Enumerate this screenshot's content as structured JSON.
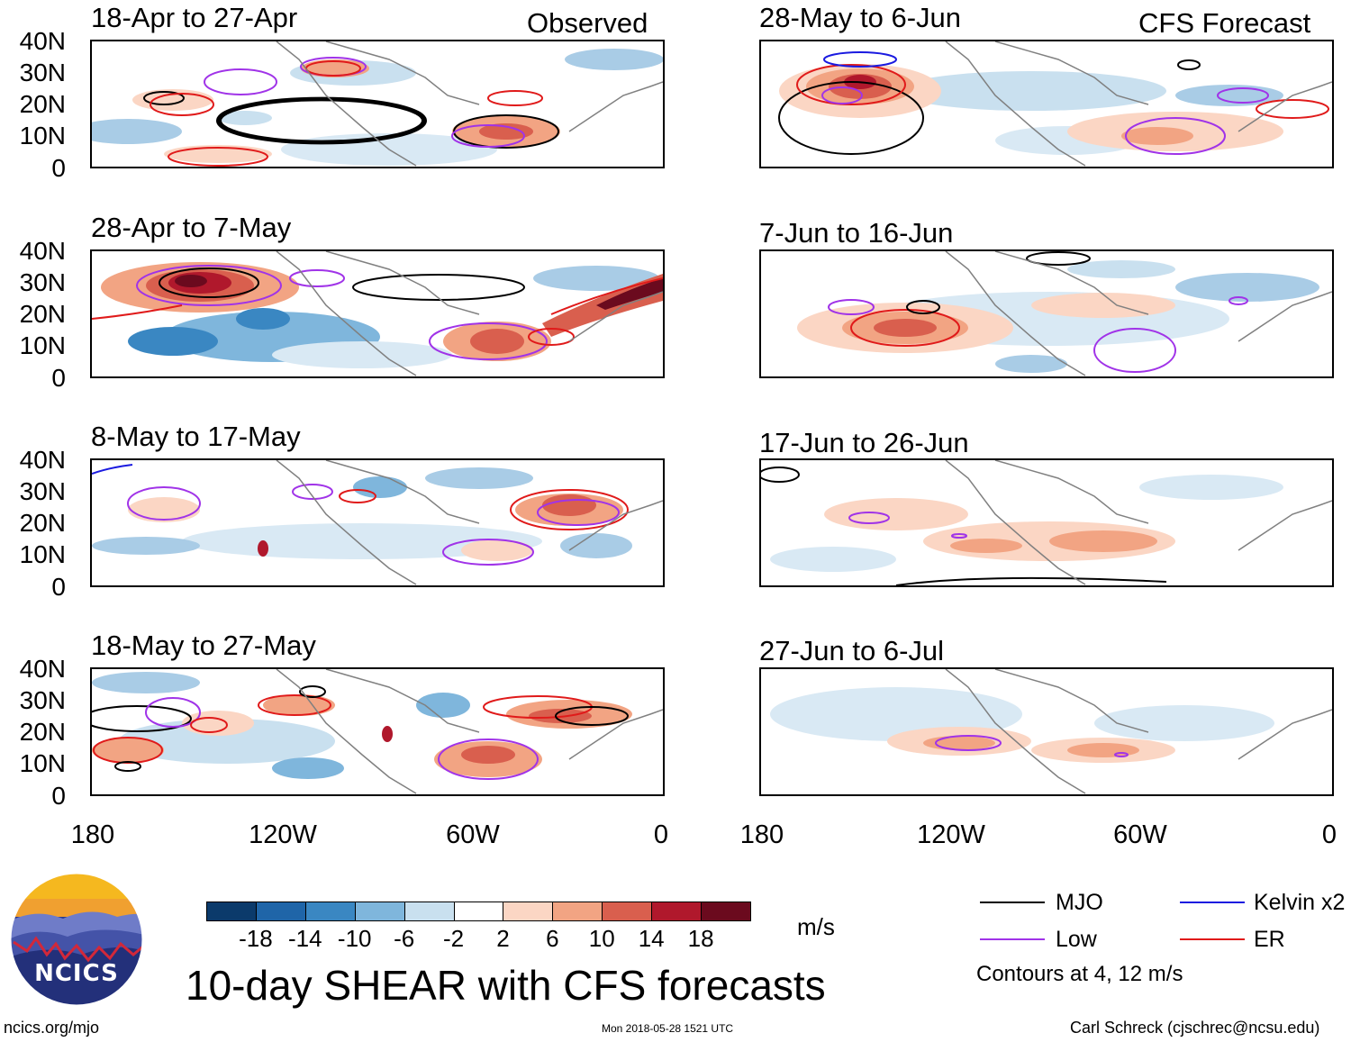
{
  "sections": {
    "observed": "Observed",
    "forecast": "CFS Forecast"
  },
  "panels": [
    {
      "title": "18-Apr to 27-Apr"
    },
    {
      "title": "28-Apr to 7-May"
    },
    {
      "title": "8-May to 17-May"
    },
    {
      "title": "18-May to 27-May"
    },
    {
      "title": "28-May to 6-Jun"
    },
    {
      "title": "7-Jun to 16-Jun"
    },
    {
      "title": "17-Jun to 26-Jun"
    },
    {
      "title": "27-Jun to 6-Jul"
    }
  ],
  "axes": {
    "lat_labels": [
      "40N",
      "30N",
      "20N",
      "10N",
      "0"
    ],
    "lon_labels": [
      "180",
      "120W",
      "60W",
      "0"
    ]
  },
  "colorbar": {
    "unit": "m/s",
    "ticks": [
      "-18",
      "-14",
      "-10",
      "-6",
      "-2",
      "2",
      "6",
      "10",
      "14",
      "18"
    ],
    "colors": [
      "#0b3a6b",
      "#1f65a8",
      "#3a87c2",
      "#7fb6dc",
      "#c9e0ef",
      "#ffffff",
      "#fbd6c4",
      "#f2a483",
      "#d95f4e",
      "#b0182c",
      "#6b0a1e"
    ]
  },
  "legend": {
    "items": [
      {
        "label": "MJO",
        "color": "#000000"
      },
      {
        "label": "Kelvin x2",
        "color": "#1a1ae0"
      },
      {
        "label": "Low",
        "color": "#a033e8"
      },
      {
        "label": "ER",
        "color": "#e01a1a"
      }
    ],
    "note": "Contours at 4, 12 m/s"
  },
  "logo": {
    "text": "NCICS"
  },
  "title": "10-day SHEAR with CFS forecasts",
  "footer": {
    "left": "ncics.org/mjo",
    "center": "Mon 2018-05-28 1521 UTC",
    "right": "Carl Schreck (cjschrec@ncsu.edu)"
  }
}
